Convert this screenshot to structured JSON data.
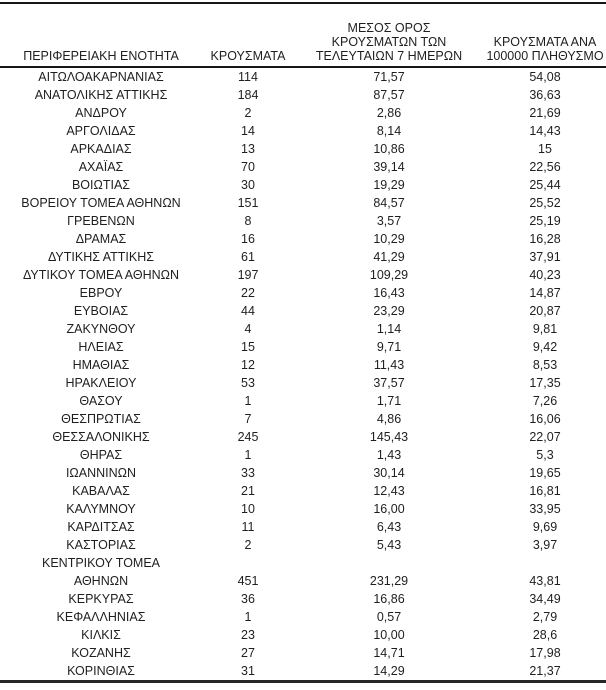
{
  "table": {
    "columns": [
      {
        "key": "region",
        "label": "ΠΕΡΙΦΕΡΕΙΑΚΗ ΕΝΟΤΗΤΑ"
      },
      {
        "key": "cases",
        "label": "ΚΡΟΥΣΜΑΤΑ"
      },
      {
        "key": "avg7",
        "label": "ΜΕΣΟΣ ΟΡΟΣ\nΚΡΟΥΣΜΑΤΩΝ ΤΩΝ\nΤΕΛΕΥΤΑΙΩΝ 7 ΗΜΕΡΩΝ"
      },
      {
        "key": "per100k",
        "label": "ΚΡΟΥΣΜΑΤΑ ΑΝΑ\n100000 ΠΛΗΘΥΣΜΟ"
      }
    ],
    "rows": [
      {
        "region": "ΑΙΤΩΛΟΑΚΑΡΝΑΝΙΑΣ",
        "cases": "114",
        "avg7": "71,57",
        "per100k": "54,08"
      },
      {
        "region": "ΑΝΑΤΟΛΙΚΗΣ ΑΤΤΙΚΗΣ",
        "cases": "184",
        "avg7": "87,57",
        "per100k": "36,63"
      },
      {
        "region": "ΑΝΔΡΟΥ",
        "cases": "2",
        "avg7": "2,86",
        "per100k": "21,69"
      },
      {
        "region": "ΑΡΓΟΛΙΔΑΣ",
        "cases": "14",
        "avg7": "8,14",
        "per100k": "14,43"
      },
      {
        "region": "ΑΡΚΑΔΙΑΣ",
        "cases": "13",
        "avg7": "10,86",
        "per100k": "15"
      },
      {
        "region": "ΑΧΑΪΑΣ",
        "cases": "70",
        "avg7": "39,14",
        "per100k": "22,56"
      },
      {
        "region": "ΒΟΙΩΤΙΑΣ",
        "cases": "30",
        "avg7": "19,29",
        "per100k": "25,44"
      },
      {
        "region": "ΒΟΡΕΙΟΥ ΤΟΜΕΑ ΑΘΗΝΩΝ",
        "cases": "151",
        "avg7": "84,57",
        "per100k": "25,52"
      },
      {
        "region": "ΓΡΕΒΕΝΩΝ",
        "cases": "8",
        "avg7": "3,57",
        "per100k": "25,19"
      },
      {
        "region": "ΔΡΑΜΑΣ",
        "cases": "16",
        "avg7": "10,29",
        "per100k": "16,28"
      },
      {
        "region": "ΔΥΤΙΚΗΣ ΑΤΤΙΚΗΣ",
        "cases": "61",
        "avg7": "41,29",
        "per100k": "37,91"
      },
      {
        "region": "ΔΥΤΙΚΟΥ ΤΟΜΕΑ ΑΘΗΝΩΝ",
        "cases": "197",
        "avg7": "109,29",
        "per100k": "40,23"
      },
      {
        "region": "ΕΒΡΟΥ",
        "cases": "22",
        "avg7": "16,43",
        "per100k": "14,87"
      },
      {
        "region": "ΕΥΒΟΙΑΣ",
        "cases": "44",
        "avg7": "23,29",
        "per100k": "20,87"
      },
      {
        "region": "ΖΑΚΥΝΘΟΥ",
        "cases": "4",
        "avg7": "1,14",
        "per100k": "9,81"
      },
      {
        "region": "ΗΛΕΙΑΣ",
        "cases": "15",
        "avg7": "9,71",
        "per100k": "9,42"
      },
      {
        "region": "ΗΜΑΘΙΑΣ",
        "cases": "12",
        "avg7": "11,43",
        "per100k": "8,53"
      },
      {
        "region": "ΗΡΑΚΛΕΙΟΥ",
        "cases": "53",
        "avg7": "37,57",
        "per100k": "17,35"
      },
      {
        "region": "ΘΑΣΟΥ",
        "cases": "1",
        "avg7": "1,71",
        "per100k": "7,26"
      },
      {
        "region": "ΘΕΣΠΡΩΤΙΑΣ",
        "cases": "7",
        "avg7": "4,86",
        "per100k": "16,06"
      },
      {
        "region": "ΘΕΣΣΑΛΟΝΙΚΗΣ",
        "cases": "245",
        "avg7": "145,43",
        "per100k": "22,07"
      },
      {
        "region": "ΘΗΡΑΣ",
        "cases": "1",
        "avg7": "1,43",
        "per100k": "5,3"
      },
      {
        "region": "ΙΩΑΝΝΙΝΩΝ",
        "cases": "33",
        "avg7": "30,14",
        "per100k": "19,65"
      },
      {
        "region": "ΚΑΒΑΛΑΣ",
        "cases": "21",
        "avg7": "12,43",
        "per100k": "16,81"
      },
      {
        "region": "ΚΑΛΥΜΝΟΥ",
        "cases": "10",
        "avg7": "16,00",
        "per100k": "33,95"
      },
      {
        "region": "ΚΑΡΔΙΤΣΑΣ",
        "cases": "11",
        "avg7": "6,43",
        "per100k": "9,69"
      },
      {
        "region": "ΚΑΣΤΟΡΙΑΣ",
        "cases": "2",
        "avg7": "5,43",
        "per100k": "3,97"
      },
      {
        "region": "ΚΕΝΤΡΙΚΟΥ ΤΟΜΕΑ\nΑΘΗΝΩΝ",
        "cases": "451",
        "avg7": "231,29",
        "per100k": "43,81"
      },
      {
        "region": "ΚΕΡΚΥΡΑΣ",
        "cases": "36",
        "avg7": "16,86",
        "per100k": "34,49"
      },
      {
        "region": "ΚΕΦΑΛΛΗΝΙΑΣ",
        "cases": "1",
        "avg7": "0,57",
        "per100k": "2,79"
      },
      {
        "region": "ΚΙΛΚΙΣ",
        "cases": "23",
        "avg7": "10,00",
        "per100k": "28,6"
      },
      {
        "region": "ΚΟΖΑΝΗΣ",
        "cases": "27",
        "avg7": "14,71",
        "per100k": "17,98"
      },
      {
        "region": "ΚΟΡΙΝΘΙΑΣ",
        "cases": "31",
        "avg7": "14,29",
        "per100k": "21,37"
      }
    ]
  }
}
